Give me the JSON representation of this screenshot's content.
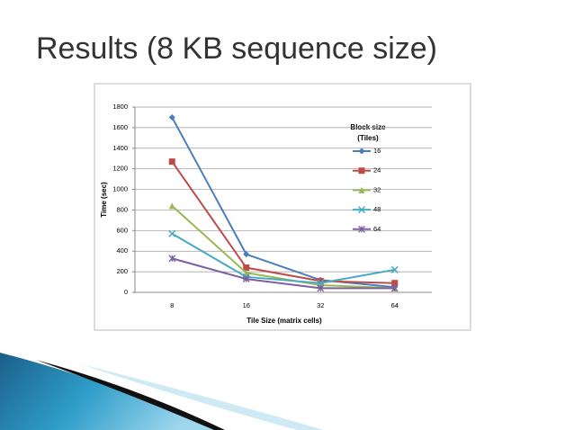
{
  "slide_title": "Results (8 KB sequence size)",
  "chart_data": {
    "type": "line",
    "x_label": "Tile Size (matrix cells)",
    "y_label": "Time (sec)",
    "legend_title": [
      "Block  size",
      "(Tiles)"
    ],
    "legend_position": "right",
    "grid": true,
    "categories": [
      "8",
      "16",
      "32",
      "64"
    ],
    "ylim": [
      0,
      1800
    ],
    "yticks": [
      0,
      200,
      400,
      600,
      800,
      1000,
      1200,
      1400,
      1600,
      1800
    ],
    "series": [
      {
        "name": "16",
        "color": "#4a7ebb",
        "marker": "diamond",
        "values": [
          1700,
          370,
          120,
          50
        ]
      },
      {
        "name": "24",
        "color": "#be4b48",
        "marker": "square",
        "values": [
          1270,
          240,
          110,
          90
        ]
      },
      {
        "name": "32",
        "color": "#98b954",
        "marker": "triangle",
        "values": [
          840,
          190,
          70,
          40
        ]
      },
      {
        "name": "48",
        "color": "#46aac5",
        "marker": "x",
        "values": [
          570,
          150,
          90,
          220
        ]
      },
      {
        "name": "64",
        "color": "#7d60a0",
        "marker": "star",
        "values": [
          330,
          130,
          40,
          40
        ]
      }
    ]
  }
}
